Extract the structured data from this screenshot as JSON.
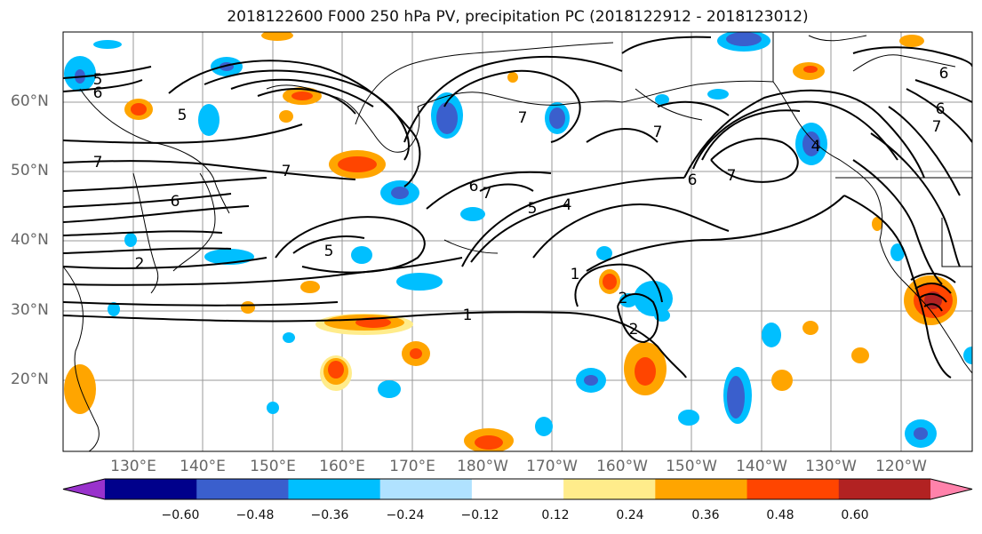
{
  "title": "2018122600 F000 250 hPa PV, precipitation PC (2018122912 - 2018123012)",
  "lat_labels": [
    "60°N",
    "50°N",
    "40°N",
    "30°N",
    "20°N"
  ],
  "lon_labels": [
    "130°E",
    "140°E",
    "150°E",
    "160°E",
    "170°E",
    "180°W",
    "170°W",
    "160°W",
    "150°W",
    "140°W",
    "130°W",
    "120°W"
  ],
  "colorbar": {
    "ticks": [
      "−0.60",
      "−0.48",
      "−0.36",
      "−0.24",
      "−0.12",
      "0.12",
      "0.24",
      "0.36",
      "0.48",
      "0.60"
    ],
    "colors": [
      "#9932CC",
      "#00008B",
      "#3A5FCD",
      "#00BFFF",
      "#B0E2FF",
      "#FFFFFF",
      "#FFEC8B",
      "#FFA500",
      "#FF4500",
      "#B22222",
      "#FF82AB"
    ]
  },
  "contour_labels": [
    "5",
    "6",
    "5",
    "7",
    "7",
    "6",
    "2",
    "5",
    "6",
    "7",
    "5",
    "4",
    "1",
    "1",
    "2",
    "7",
    "7",
    "6",
    "7",
    "6",
    "4",
    "6",
    "7",
    "2"
  ]
}
